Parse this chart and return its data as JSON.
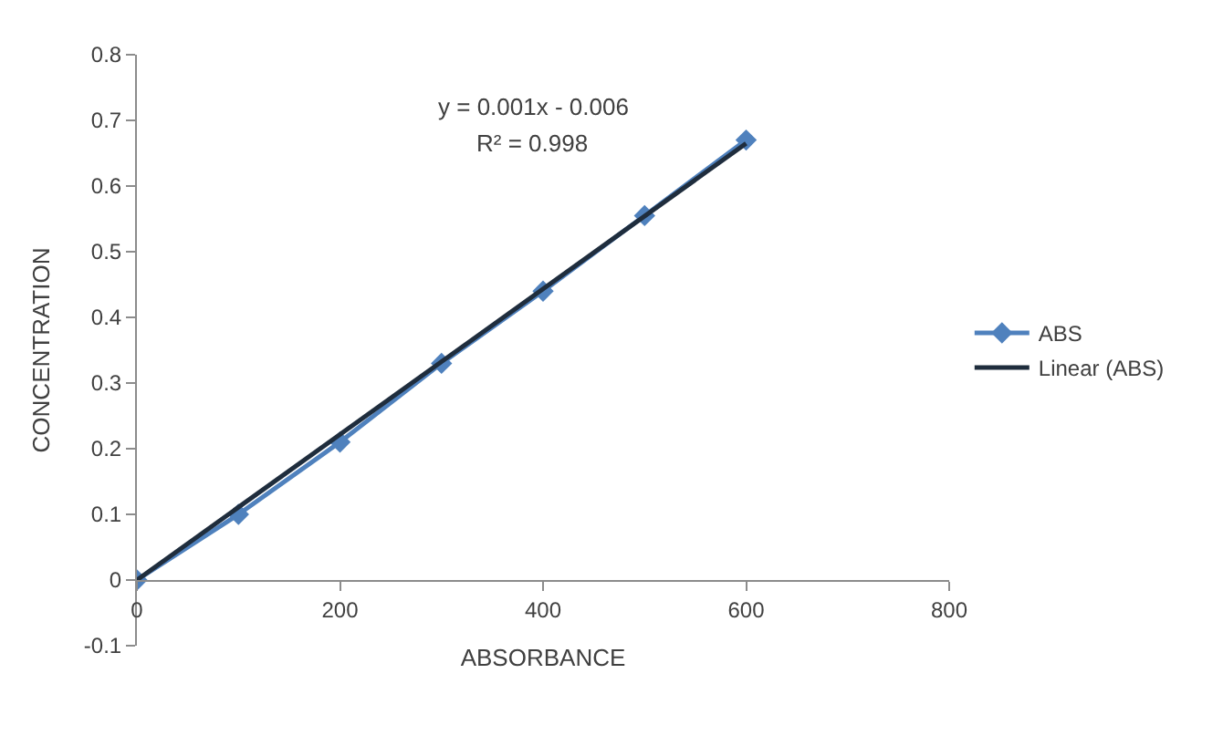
{
  "chart_data": {
    "type": "line",
    "xlabel": "ABSORBANCE",
    "ylabel": "CONCENTRATION",
    "x": [
      0,
      100,
      200,
      300,
      400,
      500,
      600
    ],
    "series": [
      {
        "name": "ABS",
        "color": "#4f81bd",
        "values": [
          0,
          0.1,
          0.21,
          0.33,
          0.44,
          0.555,
          0.67
        ],
        "marker": "diamond"
      },
      {
        "name": "Linear (ABS)",
        "color": "#1f2d3d",
        "type": "line",
        "x": [
          0,
          600
        ],
        "values": [
          0,
          0.665
        ],
        "marker": "none"
      }
    ],
    "annotations": [
      "y = 0.001x - 0.006",
      "R² = 0.998"
    ],
    "xlim": [
      0,
      800
    ],
    "xticks": [
      0,
      200,
      400,
      600,
      800
    ],
    "ylim": [
      -0.1,
      0.8
    ],
    "yticks": [
      -0.1,
      0,
      0.1,
      0.2,
      0.3,
      0.4,
      0.5,
      0.6,
      0.7,
      0.8
    ],
    "legend": "right",
    "line_style": "solid"
  }
}
